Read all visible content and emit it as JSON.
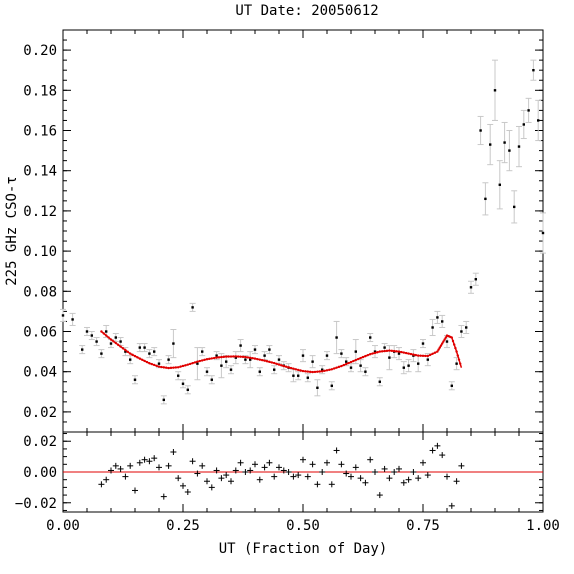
{
  "chart_data": [
    {
      "type": "scatter",
      "title": "UT Date: 20050612",
      "ylabel": "225 GHz CSO-τ",
      "xlim": [
        0.0,
        1.0
      ],
      "ylim": [
        0.01,
        0.21
      ],
      "xticks": [
        "0.00",
        "0.25",
        "0.50",
        "0.75",
        "1.00"
      ],
      "yticks": [
        "0.02",
        "0.04",
        "0.06",
        "0.08",
        "0.10",
        "0.12",
        "0.14",
        "0.16",
        "0.18",
        "0.20"
      ],
      "colors": {
        "points": "#000000",
        "errorbars": "#c8c8c8",
        "fit": "#e00000"
      },
      "series": [
        {
          "kind": "measurements",
          "x": [
            0.0,
            0.02,
            0.04,
            0.05,
            0.06,
            0.07,
            0.08,
            0.09,
            0.1,
            0.11,
            0.12,
            0.13,
            0.14,
            0.15,
            0.16,
            0.17,
            0.18,
            0.19,
            0.2,
            0.21,
            0.22,
            0.23,
            0.24,
            0.25,
            0.26,
            0.27,
            0.28,
            0.29,
            0.3,
            0.31,
            0.32,
            0.33,
            0.34,
            0.35,
            0.36,
            0.37,
            0.38,
            0.39,
            0.4,
            0.41,
            0.42,
            0.43,
            0.44,
            0.45,
            0.46,
            0.47,
            0.48,
            0.49,
            0.5,
            0.51,
            0.52,
            0.53,
            0.54,
            0.55,
            0.56,
            0.57,
            0.58,
            0.59,
            0.6,
            0.61,
            0.62,
            0.63,
            0.64,
            0.65,
            0.66,
            0.67,
            0.68,
            0.69,
            0.7,
            0.71,
            0.72,
            0.73,
            0.74,
            0.75,
            0.76,
            0.77,
            0.78,
            0.79,
            0.8,
            0.81,
            0.82,
            0.83,
            0.84,
            0.85,
            0.86,
            0.87,
            0.88,
            0.89,
            0.9,
            0.91,
            0.92,
            0.93,
            0.94,
            0.95,
            0.96,
            0.97,
            0.98,
            0.99,
            1.0
          ],
          "y": [
            0.068,
            0.066,
            0.051,
            0.06,
            0.058,
            0.055,
            0.049,
            0.06,
            0.054,
            0.057,
            0.055,
            0.05,
            0.046,
            0.036,
            0.052,
            0.052,
            0.049,
            0.05,
            0.044,
            0.026,
            0.046,
            0.054,
            0.038,
            0.034,
            0.031,
            0.072,
            0.044,
            0.05,
            0.04,
            0.036,
            0.048,
            0.043,
            0.045,
            0.041,
            0.047,
            0.053,
            0.046,
            0.046,
            0.051,
            0.04,
            0.048,
            0.051,
            0.041,
            0.046,
            0.043,
            0.042,
            0.038,
            0.038,
            0.048,
            0.037,
            0.045,
            0.032,
            0.041,
            0.048,
            0.033,
            0.057,
            0.049,
            0.045,
            0.042,
            0.05,
            0.043,
            0.04,
            0.057,
            0.05,
            0.035,
            0.052,
            0.047,
            0.05,
            0.049,
            0.042,
            0.043,
            0.048,
            0.044,
            0.054,
            0.046,
            0.062,
            0.067,
            0.065,
            0.055,
            0.033,
            0.044,
            0.06,
            0.062,
            0.082,
            0.086,
            0.16,
            0.126,
            0.153,
            0.18,
            0.133,
            0.154,
            0.15,
            0.122,
            0.152,
            0.163,
            0.17,
            0.19,
            0.165,
            0.109
          ],
          "err": [
            0.003,
            0.003,
            0.002,
            0.002,
            0.002,
            0.002,
            0.002,
            0.003,
            0.002,
            0.002,
            0.002,
            0.002,
            0.002,
            0.002,
            0.002,
            0.002,
            0.002,
            0.002,
            0.002,
            0.002,
            0.002,
            0.007,
            0.002,
            0.002,
            0.002,
            0.002,
            0.008,
            0.002,
            0.002,
            0.002,
            0.002,
            0.006,
            0.003,
            0.002,
            0.003,
            0.003,
            0.002,
            0.004,
            0.002,
            0.002,
            0.002,
            0.002,
            0.002,
            0.002,
            0.002,
            0.002,
            0.003,
            0.002,
            0.003,
            0.002,
            0.003,
            0.004,
            0.002,
            0.002,
            0.002,
            0.008,
            0.002,
            0.002,
            0.002,
            0.006,
            0.003,
            0.002,
            0.002,
            0.003,
            0.002,
            0.002,
            0.006,
            0.003,
            0.003,
            0.003,
            0.003,
            0.003,
            0.004,
            0.002,
            0.003,
            0.004,
            0.003,
            0.003,
            0.003,
            0.002,
            0.003,
            0.003,
            0.003,
            0.003,
            0.003,
            0.007,
            0.008,
            0.01,
            0.015,
            0.012,
            0.01,
            0.01,
            0.008,
            0.01,
            0.007,
            0.006,
            0.005,
            0.01,
            0.01
          ]
        },
        {
          "kind": "fit",
          "x": [
            0.08,
            0.1,
            0.12,
            0.14,
            0.16,
            0.18,
            0.2,
            0.22,
            0.24,
            0.26,
            0.28,
            0.3,
            0.32,
            0.34,
            0.36,
            0.38,
            0.4,
            0.42,
            0.44,
            0.46,
            0.48,
            0.5,
            0.52,
            0.54,
            0.56,
            0.58,
            0.6,
            0.62,
            0.64,
            0.66,
            0.68,
            0.7,
            0.72,
            0.74,
            0.76,
            0.78,
            0.79,
            0.8,
            0.81,
            0.82,
            0.83
          ],
          "y": [
            0.06,
            0.056,
            0.0525,
            0.049,
            0.0465,
            0.0442,
            0.0425,
            0.0418,
            0.0422,
            0.0435,
            0.045,
            0.0462,
            0.047,
            0.0475,
            0.0476,
            0.0473,
            0.0465,
            0.0455,
            0.0443,
            0.0428,
            0.0415,
            0.0403,
            0.0398,
            0.0402,
            0.0412,
            0.0428,
            0.0448,
            0.0468,
            0.0487,
            0.05,
            0.0505,
            0.05,
            0.049,
            0.048,
            0.0478,
            0.05,
            0.054,
            0.058,
            0.057,
            0.05,
            0.042
          ]
        }
      ]
    },
    {
      "type": "scatter",
      "xlabel": "UT (Fraction of Day)",
      "xlim": [
        0.0,
        1.0
      ],
      "ylim": [
        -0.026,
        0.026
      ],
      "xticks": [
        "0.00",
        "0.25",
        "0.50",
        "0.75",
        "1.00"
      ],
      "yticks": [
        "−0.02",
        "0.00",
        "0.02"
      ],
      "colors": {
        "points": "#000000",
        "zero_line": "#e00000"
      },
      "series": [
        {
          "kind": "residuals",
          "x": [
            0.08,
            0.09,
            0.1,
            0.11,
            0.12,
            0.13,
            0.14,
            0.15,
            0.16,
            0.17,
            0.18,
            0.19,
            0.2,
            0.21,
            0.22,
            0.23,
            0.24,
            0.25,
            0.26,
            0.27,
            0.28,
            0.29,
            0.3,
            0.31,
            0.32,
            0.33,
            0.34,
            0.35,
            0.36,
            0.37,
            0.38,
            0.39,
            0.4,
            0.41,
            0.42,
            0.43,
            0.44,
            0.45,
            0.46,
            0.47,
            0.48,
            0.49,
            0.5,
            0.51,
            0.52,
            0.53,
            0.54,
            0.55,
            0.56,
            0.57,
            0.58,
            0.59,
            0.6,
            0.61,
            0.62,
            0.63,
            0.64,
            0.65,
            0.66,
            0.67,
            0.68,
            0.69,
            0.7,
            0.71,
            0.72,
            0.73,
            0.74,
            0.75,
            0.76,
            0.77,
            0.78,
            0.79,
            0.8,
            0.81,
            0.82,
            0.83
          ],
          "y": [
            -0.008,
            -0.005,
            0.001,
            0.004,
            0.002,
            -0.003,
            0.004,
            -0.012,
            0.006,
            0.008,
            0.007,
            0.009,
            0.003,
            -0.016,
            0.004,
            0.013,
            -0.004,
            -0.009,
            -0.013,
            0.007,
            -0.001,
            0.004,
            -0.006,
            -0.01,
            0.001,
            -0.004,
            -0.002,
            -0.006,
            0.001,
            0.006,
            0.0,
            0.001,
            0.005,
            -0.005,
            0.003,
            0.006,
            -0.003,
            0.003,
            0.001,
            0.0,
            -0.003,
            -0.002,
            0.008,
            -0.003,
            0.005,
            -0.008,
            0.0,
            0.006,
            -0.008,
            0.014,
            0.005,
            -0.001,
            -0.003,
            0.003,
            -0.004,
            -0.007,
            0.008,
            0.0,
            -0.015,
            0.002,
            -0.004,
            0.0,
            0.002,
            -0.007,
            -0.005,
            0.0,
            -0.004,
            0.006,
            -0.002,
            0.014,
            0.017,
            0.011,
            -0.003,
            -0.022,
            -0.006,
            0.004
          ]
        }
      ]
    }
  ]
}
